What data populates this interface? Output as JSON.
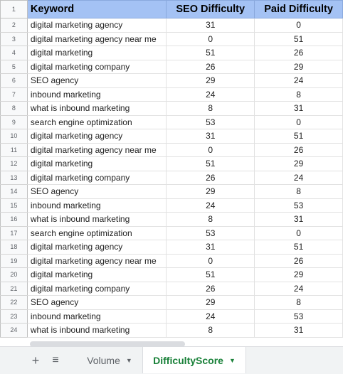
{
  "header": {
    "row_number": "1",
    "keyword": "Keyword",
    "seo": "SEO Difficulty",
    "paid": "Paid Difficulty"
  },
  "rows": [
    {
      "n": "2",
      "keyword": "digital marketing agency",
      "seo": "31",
      "paid": "0"
    },
    {
      "n": "3",
      "keyword": "digital marketing agency near me",
      "seo": "0",
      "paid": "51"
    },
    {
      "n": "4",
      "keyword": "digital marketing",
      "seo": "51",
      "paid": "26"
    },
    {
      "n": "5",
      "keyword": "digital marketing company",
      "seo": "26",
      "paid": "29"
    },
    {
      "n": "6",
      "keyword": "SEO agency",
      "seo": "29",
      "paid": "24"
    },
    {
      "n": "7",
      "keyword": "inbound marketing",
      "seo": "24",
      "paid": "8"
    },
    {
      "n": "8",
      "keyword": "what is inbound marketing",
      "seo": "8",
      "paid": "31"
    },
    {
      "n": "9",
      "keyword": "search engine optimization",
      "seo": "53",
      "paid": "0"
    },
    {
      "n": "10",
      "keyword": "digital marketing agency",
      "seo": "31",
      "paid": "51"
    },
    {
      "n": "11",
      "keyword": "digital marketing agency near me",
      "seo": "0",
      "paid": "26"
    },
    {
      "n": "12",
      "keyword": "digital marketing",
      "seo": "51",
      "paid": "29"
    },
    {
      "n": "13",
      "keyword": "digital marketing company",
      "seo": "26",
      "paid": "24"
    },
    {
      "n": "14",
      "keyword": "SEO agency",
      "seo": "29",
      "paid": "8"
    },
    {
      "n": "15",
      "keyword": "inbound marketing",
      "seo": "24",
      "paid": "53"
    },
    {
      "n": "16",
      "keyword": "what is inbound marketing",
      "seo": "8",
      "paid": "31"
    },
    {
      "n": "17",
      "keyword": "search engine optimization",
      "seo": "53",
      "paid": "0"
    },
    {
      "n": "18",
      "keyword": "digital marketing agency",
      "seo": "31",
      "paid": "51"
    },
    {
      "n": "19",
      "keyword": "digital marketing agency near me",
      "seo": "0",
      "paid": "26"
    },
    {
      "n": "20",
      "keyword": "digital marketing",
      "seo": "51",
      "paid": "29"
    },
    {
      "n": "21",
      "keyword": "digital marketing company",
      "seo": "26",
      "paid": "24"
    },
    {
      "n": "22",
      "keyword": "SEO agency",
      "seo": "29",
      "paid": "8"
    },
    {
      "n": "23",
      "keyword": "inbound marketing",
      "seo": "24",
      "paid": "53"
    },
    {
      "n": "24",
      "keyword": "what is inbound marketing",
      "seo": "8",
      "paid": "31"
    }
  ],
  "tabbar": {
    "add_icon": "plus-icon",
    "list_icon": "all-sheets-icon",
    "tabs": [
      {
        "label": "Volume",
        "active": false
      },
      {
        "label": "DifficultyScore",
        "active": true
      }
    ]
  },
  "colors": {
    "header_bg": "#a4c2f4",
    "active_tab_text": "#188038"
  }
}
